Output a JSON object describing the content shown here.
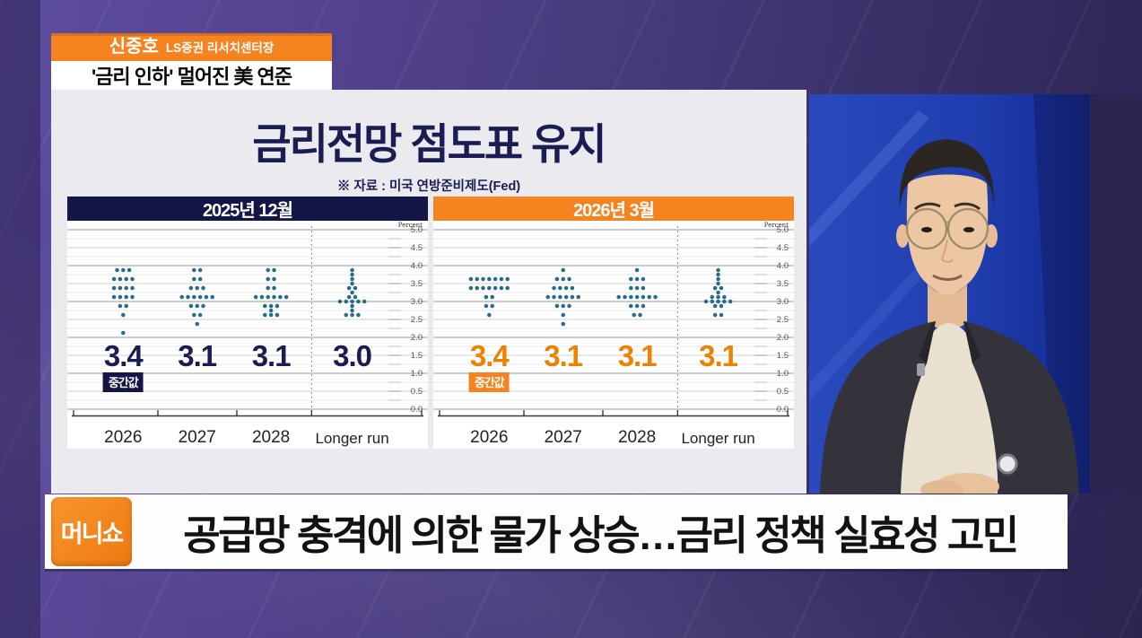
{
  "colors": {
    "accent_orange": "#F5831F",
    "accent_navy": "#141647",
    "median_navy": "#1B1D52",
    "median_orange": "#EE8200",
    "dot": "#266C8E",
    "panel_bg": "#EAEAEF",
    "studio_blue": "#2140AD",
    "headline_text": "#121212"
  },
  "speaker_banner": {
    "name": "신중호",
    "title": "LS증권 리서치센터장"
  },
  "topic_banner": {
    "text": "'금리 인하' 멀어진 美 연준"
  },
  "panel": {
    "title": "금리전망 점도표 유지",
    "source": "※ 자료 : 미국 연방준비제도(Fed)"
  },
  "ticker": {
    "logo": "머니쇼",
    "headline": "공급망 충격에 의한 물가 상승…금리 정책 실효성 고민"
  },
  "chart_data": [
    {
      "type": "scatter",
      "variant": "fomc_dot_plot",
      "title": "2025년 12월",
      "accent": "#141647",
      "median_color": "#1B1D52",
      "ylabel": "Percent",
      "ylim": [
        0.0,
        5.0
      ],
      "ytick_step": 0.5,
      "categories": [
        "2026",
        "2027",
        "2028",
        "Longer run"
      ],
      "medians": [
        "3.4",
        "3.1",
        "3.1",
        "3.0"
      ],
      "median_badge": "중간값",
      "dots": [
        {
          "category": "2026",
          "points": [
            [
              3.875,
              3
            ],
            [
              3.625,
              4
            ],
            [
              3.375,
              4
            ],
            [
              3.125,
              4
            ],
            [
              2.875,
              2
            ],
            [
              2.625,
              1
            ],
            [
              2.125,
              1
            ]
          ]
        },
        {
          "category": "2027",
          "points": [
            [
              3.875,
              2
            ],
            [
              3.625,
              2
            ],
            [
              3.375,
              3
            ],
            [
              3.125,
              6
            ],
            [
              2.875,
              3
            ],
            [
              2.625,
              2
            ],
            [
              2.375,
              1
            ]
          ]
        },
        {
          "category": "2028",
          "points": [
            [
              3.875,
              2
            ],
            [
              3.625,
              2
            ],
            [
              3.375,
              2
            ],
            [
              3.125,
              6
            ],
            [
              2.875,
              3
            ],
            [
              2.75,
              1
            ],
            [
              2.625,
              3
            ]
          ]
        },
        {
          "category": "Longer run",
          "points": [
            [
              3.875,
              1
            ],
            [
              3.75,
              1
            ],
            [
              3.625,
              1
            ],
            [
              3.5,
              1
            ],
            [
              3.375,
              2
            ],
            [
              3.25,
              1
            ],
            [
              3.125,
              2
            ],
            [
              3.0,
              5
            ],
            [
              2.875,
              1
            ],
            [
              2.75,
              1
            ],
            [
              2.625,
              3
            ]
          ]
        }
      ]
    },
    {
      "type": "scatter",
      "variant": "fomc_dot_plot",
      "title": "2026년 3월",
      "accent": "#F5831F",
      "median_color": "#EE8200",
      "ylabel": "Percent",
      "ylim": [
        0.0,
        5.0
      ],
      "ytick_step": 0.5,
      "categories": [
        "2026",
        "2027",
        "2028",
        "Longer run"
      ],
      "medians": [
        "3.4",
        "3.1",
        "3.1",
        "3.1"
      ],
      "median_badge": "중간값",
      "dots": [
        {
          "category": "2026",
          "points": [
            [
              3.625,
              7
            ],
            [
              3.375,
              7
            ],
            [
              3.125,
              2
            ],
            [
              2.875,
              2
            ],
            [
              2.625,
              1
            ]
          ]
        },
        {
          "category": "2027",
          "points": [
            [
              3.875,
              1
            ],
            [
              3.625,
              3
            ],
            [
              3.375,
              4
            ],
            [
              3.125,
              6
            ],
            [
              2.875,
              3
            ],
            [
              2.625,
              1
            ],
            [
              2.375,
              1
            ]
          ]
        },
        {
          "category": "2028",
          "points": [
            [
              3.875,
              1
            ],
            [
              3.625,
              3
            ],
            [
              3.375,
              3
            ],
            [
              3.125,
              7
            ],
            [
              2.875,
              3
            ],
            [
              2.625,
              2
            ]
          ]
        },
        {
          "category": "Longer run",
          "points": [
            [
              3.875,
              1
            ],
            [
              3.75,
              1
            ],
            [
              3.625,
              1
            ],
            [
              3.5,
              1
            ],
            [
              3.375,
              2
            ],
            [
              3.25,
              1
            ],
            [
              3.125,
              3
            ],
            [
              3.0,
              5
            ],
            [
              2.875,
              2
            ],
            [
              2.625,
              2
            ]
          ]
        }
      ]
    }
  ]
}
